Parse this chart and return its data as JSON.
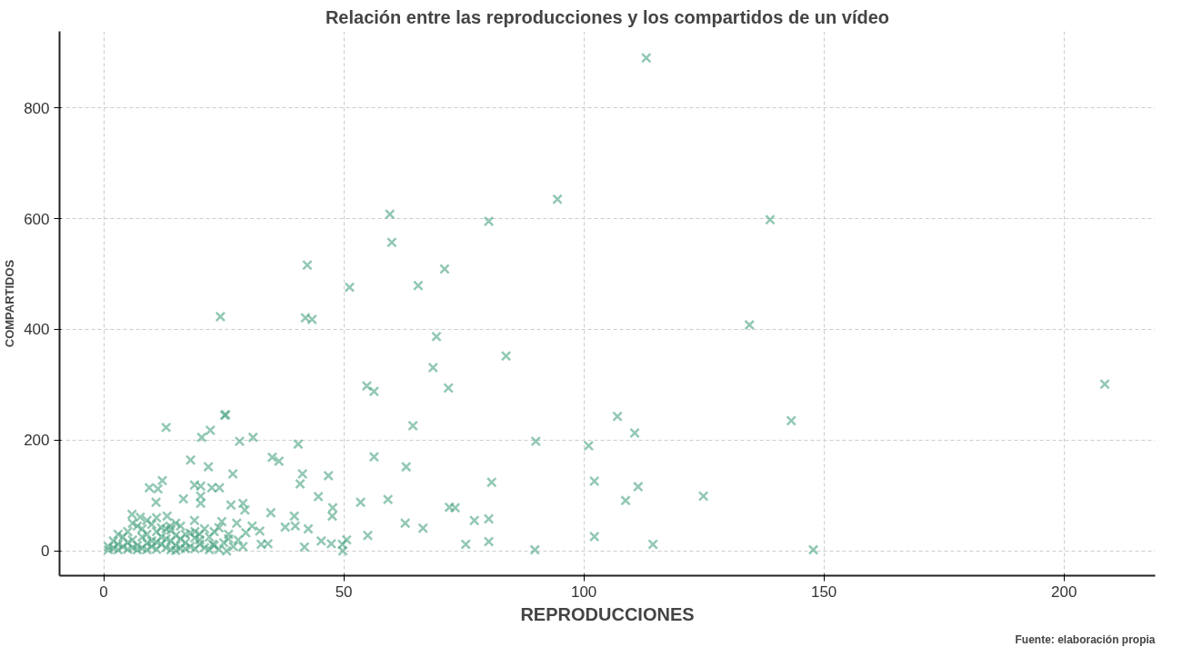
{
  "chart_data": {
    "type": "scatter",
    "title": "Relación entre las reproducciones y los compartidos de un vídeo",
    "xlabel": "REPRODUCCIONES",
    "ylabel": "COMPARTIDOS",
    "annotations": [
      "Fuente: elaboración propia"
    ],
    "xlim": [
      -9.2,
      219
    ],
    "ylim": [
      -44.6,
      938
    ],
    "xticks": [
      0,
      50,
      100,
      150,
      200
    ],
    "yticks": [
      0,
      200,
      400,
      600,
      800
    ],
    "grid": true,
    "marker": "cross",
    "series": [
      {
        "color": "#4aa381",
        "x": [
          113,
          94.5,
          138.8,
          80.2,
          59.6,
          60,
          42.4,
          71,
          51.2,
          65.5,
          42,
          43.4,
          24.3,
          134.5,
          69.3,
          83.8,
          68.6,
          208.5,
          54.8,
          56.3,
          71.8,
          143.2,
          107,
          64.4,
          110.6,
          25.4,
          40.5,
          90,
          101,
          56.3,
          63,
          41.4,
          46.8,
          102.2,
          80.8,
          111.3,
          40.9,
          108.7,
          124.9,
          59.2,
          44.7,
          53.5,
          47.7,
          72,
          73.2,
          77.2,
          80.2,
          62.8,
          39.7,
          47.6,
          66.5,
          37.8,
          42.6,
          102.2,
          55,
          75.4,
          80.2,
          114.4,
          147.8,
          89.8,
          49.7,
          45.3,
          47.4,
          41.8,
          49.8,
          50.6,
          13,
          20.4,
          22.2,
          25.2,
          28.3,
          31.1,
          35.1,
          36.5,
          18.1,
          21.8,
          26.9,
          9.5,
          12.2,
          11.3,
          18.9,
          20.2,
          22.5,
          24.1,
          10.9,
          16.6,
          20.2,
          20.2,
          26.5,
          29,
          29.4,
          34.8,
          5.9,
          7.6,
          13.2,
          13.8,
          18.9,
          24.6,
          27.7,
          30.9,
          39.9,
          32.5,
          29.6,
          32.8,
          34.2,
          29,
          25.6,
          22.7,
          2,
          3,
          3,
          4,
          5,
          5,
          6,
          6,
          7,
          7,
          8,
          8,
          9,
          9,
          10,
          10,
          11,
          11,
          12,
          12,
          13,
          13,
          14,
          14,
          15,
          15,
          16,
          16,
          17,
          18,
          18,
          19,
          20,
          20,
          21,
          22,
          23,
          24,
          25,
          26,
          27,
          28,
          4,
          5,
          7,
          6,
          9,
          10,
          11,
          8,
          12,
          14,
          15,
          16,
          17,
          19,
          21,
          23,
          24,
          26,
          3,
          2,
          1,
          1,
          13,
          11,
          9,
          15,
          17,
          19,
          22,
          20
        ],
        "values": [
          890,
          635,
          598,
          595,
          608,
          557,
          516,
          509,
          476,
          479,
          421,
          418,
          423,
          408,
          387,
          352,
          331,
          301,
          298,
          288,
          294,
          235,
          243,
          226,
          213,
          246,
          193,
          198,
          190,
          170,
          152,
          139,
          136,
          126,
          124,
          116,
          121,
          91,
          99,
          93,
          98,
          88,
          78,
          79,
          78,
          55,
          58,
          50,
          63,
          63,
          41,
          43,
          40,
          26,
          28,
          12,
          17,
          12,
          2,
          2,
          12,
          18,
          13,
          7,
          0,
          20,
          223,
          205,
          218,
          245,
          198,
          205,
          169,
          162,
          164,
          152,
          139,
          114,
          127,
          112,
          119,
          117,
          114,
          114,
          88,
          94,
          86,
          99,
          83,
          86,
          74,
          69,
          66,
          61,
          63,
          45,
          55,
          53,
          50,
          45,
          45,
          36,
          33,
          12,
          13,
          8,
          0,
          12,
          5,
          2,
          12,
          8,
          3,
          15,
          6,
          20,
          10,
          2,
          25,
          5,
          14,
          30,
          8,
          18,
          3,
          35,
          12,
          25,
          6,
          40,
          18,
          2,
          10,
          28,
          5,
          22,
          15,
          8,
          32,
          4,
          20,
          12,
          6,
          25,
          10,
          3,
          15,
          30,
          8,
          20,
          25,
          35,
          45,
          50,
          55,
          48,
          60,
          40,
          42,
          38,
          50,
          45,
          30,
          35,
          40,
          35,
          42,
          22,
          30,
          18,
          8,
          2,
          22,
          16,
          2,
          1,
          4,
          24,
          2,
          30
        ]
      }
    ]
  }
}
